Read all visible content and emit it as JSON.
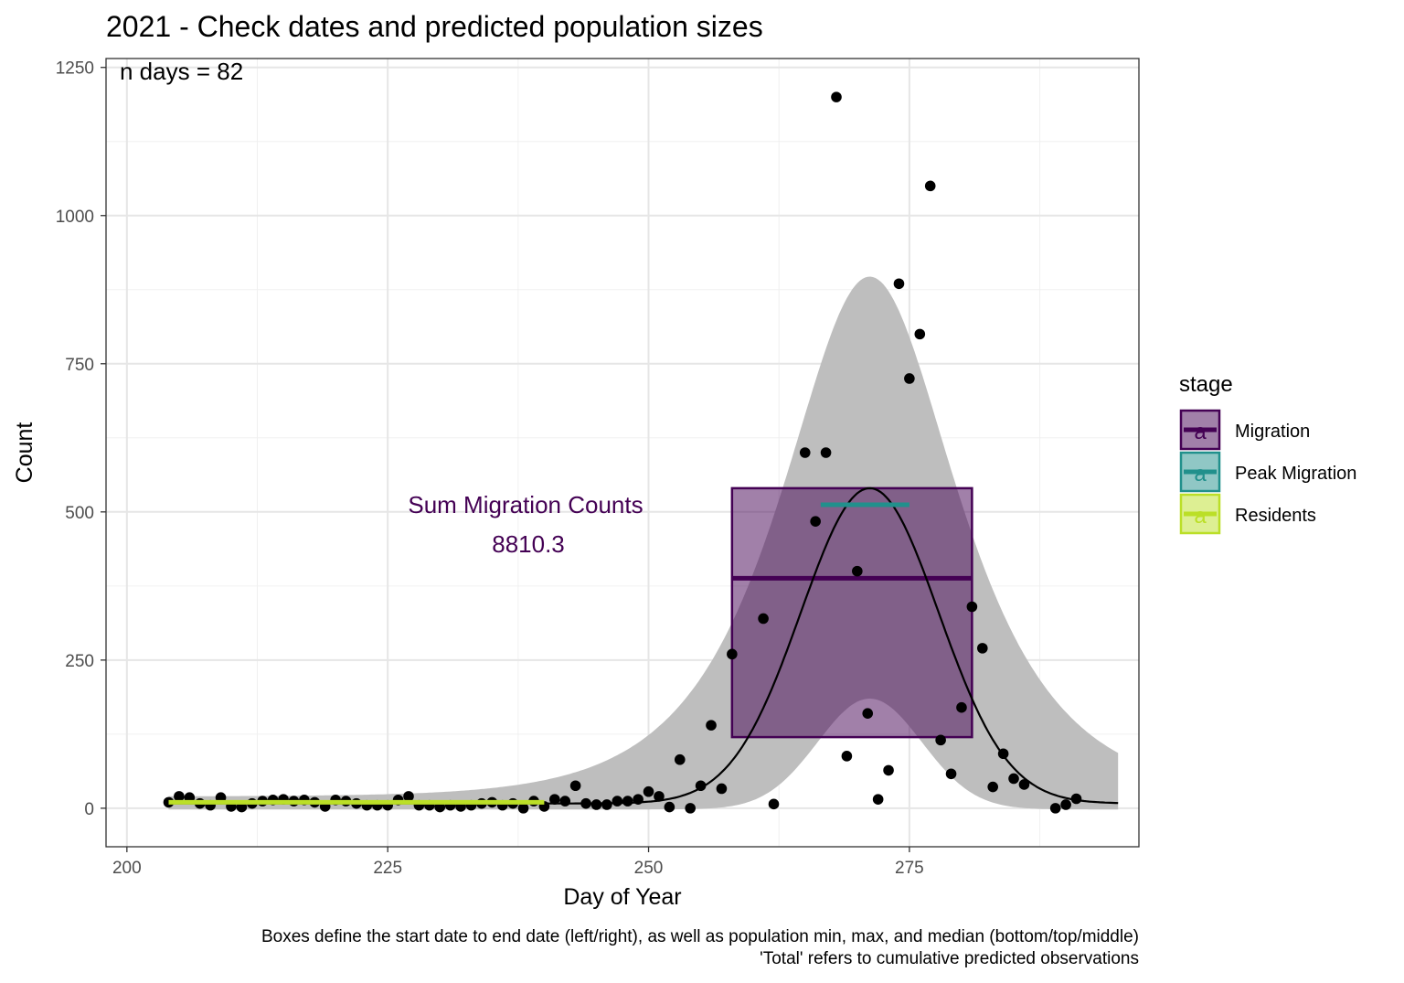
{
  "chart_data": {
    "type": "scatter",
    "title": "2021 - Check dates and predicted population sizes",
    "xlabel": "Day of Year",
    "ylabel": "Count",
    "xlim": [
      198,
      297
    ],
    "ylim": [
      -65,
      1265
    ],
    "x_ticks": [
      200,
      225,
      250,
      275
    ],
    "y_ticks": [
      0,
      250,
      500,
      750,
      1000,
      1250
    ],
    "grid": true,
    "annotation_top_left": "n days = 82",
    "sum_label": "Sum Migration Counts",
    "sum_value": "8810.3",
    "caption_line1": "Boxes define the start date to end date (left/right), as well as population min, max, and median (bottom/top/middle)",
    "caption_line2": "'Total' refers to cumulative predicted observations",
    "legend": {
      "title": "stage",
      "placement": "right",
      "items": [
        {
          "label": "Migration",
          "color": "#440154"
        },
        {
          "label": "Peak Migration",
          "color": "#21908C"
        },
        {
          "label": "Residents",
          "color": "#BBDF27"
        }
      ]
    },
    "boxes": [
      {
        "stage": "Migration",
        "x_start": 258,
        "x_end": 281,
        "y_min": 120,
        "y_max": 540,
        "y_median": 388,
        "color": "#440154"
      }
    ],
    "segments": [
      {
        "stage": "Peak Migration",
        "x_start": 266.5,
        "x_end": 275,
        "y": 512,
        "color": "#21908C"
      },
      {
        "stage": "Residents",
        "x_start": 204,
        "x_end": 240,
        "y": 10,
        "color": "#BBDF27"
      }
    ],
    "fit_curve": {
      "center": 271.2,
      "peak": 540,
      "width": 6.6,
      "baseline": 8
    },
    "confidence_band": {
      "upper_peak": 885,
      "lower_peak": 195,
      "upper_width": 7.5,
      "lower_width": 5.0,
      "x_range": [
        204,
        295
      ]
    },
    "points": [
      {
        "x": 204,
        "y": 10
      },
      {
        "x": 205,
        "y": 20
      },
      {
        "x": 206,
        "y": 18
      },
      {
        "x": 207,
        "y": 8
      },
      {
        "x": 208,
        "y": 5
      },
      {
        "x": 209,
        "y": 18
      },
      {
        "x": 210,
        "y": 3
      },
      {
        "x": 211,
        "y": 2
      },
      {
        "x": 212,
        "y": 8
      },
      {
        "x": 213,
        "y": 12
      },
      {
        "x": 214,
        "y": 14
      },
      {
        "x": 215,
        "y": 15
      },
      {
        "x": 216,
        "y": 12
      },
      {
        "x": 217,
        "y": 14
      },
      {
        "x": 218,
        "y": 10
      },
      {
        "x": 219,
        "y": 3
      },
      {
        "x": 220,
        "y": 14
      },
      {
        "x": 221,
        "y": 12
      },
      {
        "x": 222,
        "y": 8
      },
      {
        "x": 223,
        "y": 5
      },
      {
        "x": 224,
        "y": 5
      },
      {
        "x": 225,
        "y": 5
      },
      {
        "x": 226,
        "y": 14
      },
      {
        "x": 227,
        "y": 20
      },
      {
        "x": 228,
        "y": 5
      },
      {
        "x": 229,
        "y": 5
      },
      {
        "x": 230,
        "y": 2
      },
      {
        "x": 231,
        "y": 5
      },
      {
        "x": 232,
        "y": 3
      },
      {
        "x": 233,
        "y": 5
      },
      {
        "x": 234,
        "y": 8
      },
      {
        "x": 235,
        "y": 10
      },
      {
        "x": 236,
        "y": 5
      },
      {
        "x": 237,
        "y": 8
      },
      {
        "x": 238,
        "y": 0
      },
      {
        "x": 239,
        "y": 12
      },
      {
        "x": 240,
        "y": 3
      },
      {
        "x": 241,
        "y": 15
      },
      {
        "x": 242,
        "y": 12
      },
      {
        "x": 243,
        "y": 38
      },
      {
        "x": 244,
        "y": 8
      },
      {
        "x": 245,
        "y": 6
      },
      {
        "x": 246,
        "y": 6
      },
      {
        "x": 247,
        "y": 12
      },
      {
        "x": 248,
        "y": 12
      },
      {
        "x": 249,
        "y": 15
      },
      {
        "x": 250,
        "y": 28
      },
      {
        "x": 251,
        "y": 20
      },
      {
        "x": 252,
        "y": 2
      },
      {
        "x": 253,
        "y": 82
      },
      {
        "x": 254,
        "y": 0
      },
      {
        "x": 255,
        "y": 38
      },
      {
        "x": 256,
        "y": 140
      },
      {
        "x": 257,
        "y": 33
      },
      {
        "x": 258,
        "y": 260
      },
      {
        "x": 261,
        "y": 320
      },
      {
        "x": 262,
        "y": 7
      },
      {
        "x": 265,
        "y": 600
      },
      {
        "x": 266,
        "y": 484
      },
      {
        "x": 267,
        "y": 600
      },
      {
        "x": 268,
        "y": 1200
      },
      {
        "x": 269,
        "y": 88
      },
      {
        "x": 270,
        "y": 400
      },
      {
        "x": 271,
        "y": 160
      },
      {
        "x": 272,
        "y": 15
      },
      {
        "x": 273,
        "y": 64
      },
      {
        "x": 274,
        "y": 885
      },
      {
        "x": 275,
        "y": 725
      },
      {
        "x": 276,
        "y": 800
      },
      {
        "x": 277,
        "y": 1050
      },
      {
        "x": 278,
        "y": 115
      },
      {
        "x": 279,
        "y": 58
      },
      {
        "x": 280,
        "y": 170
      },
      {
        "x": 281,
        "y": 340
      },
      {
        "x": 282,
        "y": 270
      },
      {
        "x": 283,
        "y": 36
      },
      {
        "x": 284,
        "y": 92
      },
      {
        "x": 285,
        "y": 50
      },
      {
        "x": 286,
        "y": 40
      },
      {
        "x": 289,
        "y": 0
      },
      {
        "x": 290,
        "y": 6
      },
      {
        "x": 291,
        "y": 16
      }
    ]
  }
}
